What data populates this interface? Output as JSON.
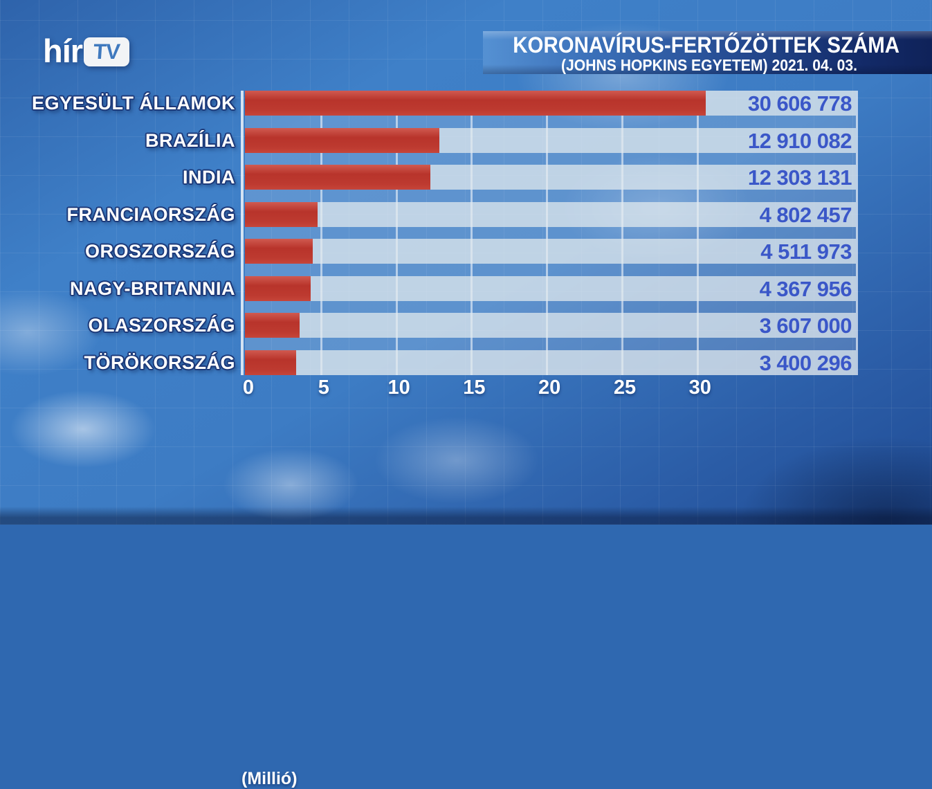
{
  "logo": {
    "text": "hír",
    "tv": "TV"
  },
  "header": {
    "title": "KORONAVÍRUS-FERTŐZÖTTEK SZÁMA",
    "subtitle": "(JOHNS HOPKINS EGYETEM) 2021. 04. 03."
  },
  "chart_data": {
    "type": "bar",
    "orientation": "horizontal",
    "title": "KORONAVÍRUS-FERTŐZÖTTEK SZÁMA",
    "subtitle": "(JOHNS HOPKINS EGYETEM) 2021. 04. 03.",
    "categories": [
      "EGYESÜLT ÁLLAMOK",
      "BRAZÍLIA",
      "INDIA",
      "FRANCIAORSZÁG",
      "OROSZORSZÁG",
      "NAGY-BRITANNIA",
      "OLASZORSZÁG",
      "TÖRÖKORSZÁG"
    ],
    "values": [
      30606778,
      12910082,
      12303131,
      4802457,
      4511973,
      4367956,
      3607000,
      3400296
    ],
    "value_labels": [
      "30 606 778",
      "12 910 082",
      "12 303 131",
      "4 802 457",
      "4 511 973",
      "4 367 956",
      "3 607 000",
      "3 400 296"
    ],
    "xlabel": "(Millió)",
    "x_ticks": [
      0,
      5,
      10,
      15,
      20,
      25,
      30
    ],
    "xlim": [
      0,
      40.6
    ],
    "grid": true,
    "legend": false,
    "bar_color": "#bd372d",
    "track_color": "#b8c4ce",
    "value_color": "#3a57c8",
    "label_color": "#ffffff",
    "label_outline_color": "#1d3a7a"
  }
}
